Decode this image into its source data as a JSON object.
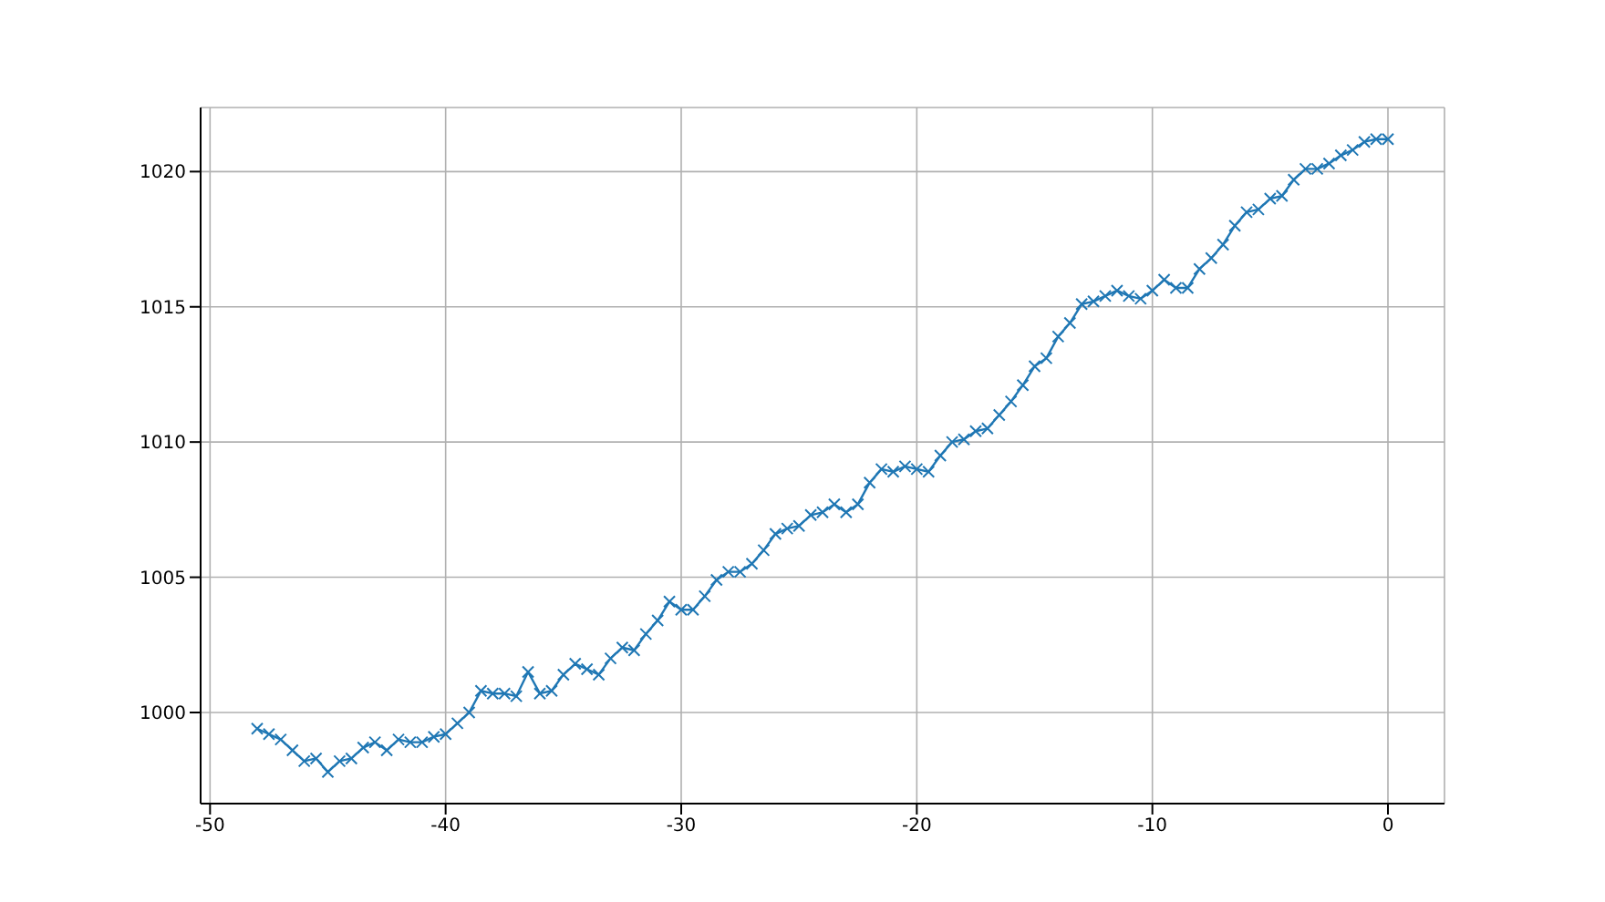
{
  "chart_data": {
    "type": "line",
    "x": [
      -48,
      -47.5,
      -47,
      -46.5,
      -46,
      -45.5,
      -45,
      -44.5,
      -44,
      -43.5,
      -43,
      -42.5,
      -42,
      -41.5,
      -41,
      -40.5,
      -40,
      -39.5,
      -39,
      -38.5,
      -38,
      -37.5,
      -37,
      -36.5,
      -36,
      -35.5,
      -35,
      -34.5,
      -34,
      -33.5,
      -33,
      -32.5,
      -32,
      -31.5,
      -31,
      -30.5,
      -30,
      -29.5,
      -29,
      -28.5,
      -28,
      -27.5,
      -27,
      -26.5,
      -26,
      -25.5,
      -25,
      -24.5,
      -24,
      -23.5,
      -23,
      -22.5,
      -22,
      -21.5,
      -21,
      -20.5,
      -20,
      -19.5,
      -19,
      -18.5,
      -18,
      -17.5,
      -17,
      -16.5,
      -16,
      -15.5,
      -15,
      -14.5,
      -14,
      -13.5,
      -13,
      -12.5,
      -12,
      -11.5,
      -11,
      -10.5,
      -10,
      -9.5,
      -9,
      -8.5,
      -8,
      -7.5,
      -7,
      -6.5,
      -6,
      -5.5,
      -5,
      -4.5,
      -4,
      -3.5,
      -3,
      -2.5,
      -2,
      -1.5,
      -1,
      -0.5,
      0
    ],
    "series": [
      {
        "color": "#1f77b4",
        "values": [
          999.4,
          999.2,
          999.0,
          998.6,
          998.2,
          998.3,
          997.8,
          998.2,
          998.3,
          998.7,
          998.9,
          998.6,
          999.0,
          998.9,
          998.9,
          999.1,
          999.2,
          999.6,
          1000.0,
          1000.8,
          1000.7,
          1000.7,
          1000.6,
          1001.5,
          1000.7,
          1000.8,
          1001.4,
          1001.8,
          1001.6,
          1001.4,
          1002.0,
          1002.4,
          1002.3,
          1002.9,
          1003.4,
          1004.1,
          1003.8,
          1003.8,
          1004.3,
          1004.9,
          1005.2,
          1005.2,
          1005.5,
          1006.0,
          1006.6,
          1006.8,
          1006.9,
          1007.3,
          1007.4,
          1007.7,
          1007.4,
          1007.7,
          1008.5,
          1009.0,
          1008.9,
          1009.1,
          1009.0,
          1008.9,
          1009.5,
          1010.0,
          1010.1,
          1010.4,
          1010.5,
          1011.0,
          1011.5,
          1012.1,
          1012.8,
          1013.1,
          1013.9,
          1014.4,
          1015.1,
          1015.2,
          1015.4,
          1015.6,
          1015.4,
          1015.3,
          1015.6,
          1016.0,
          1015.7,
          1015.7,
          1016.4,
          1016.8,
          1017.3,
          1018.0,
          1018.5,
          1018.6,
          1019.0,
          1019.1,
          1019.7,
          1020.1,
          1020.1,
          1020.3,
          1020.6,
          1020.8,
          1021.1,
          1021.2,
          1021.2
        ]
      }
    ],
    "xlim": [
      -50.4,
      2.4
    ],
    "ylim": [
      996.63,
      1022.37
    ],
    "xticks": [
      -50,
      -40,
      -30,
      -20,
      -10,
      0
    ],
    "yticks": [
      1000,
      1005,
      1010,
      1015,
      1020
    ],
    "grid": true,
    "marker": "cross",
    "line_style": "solid"
  }
}
